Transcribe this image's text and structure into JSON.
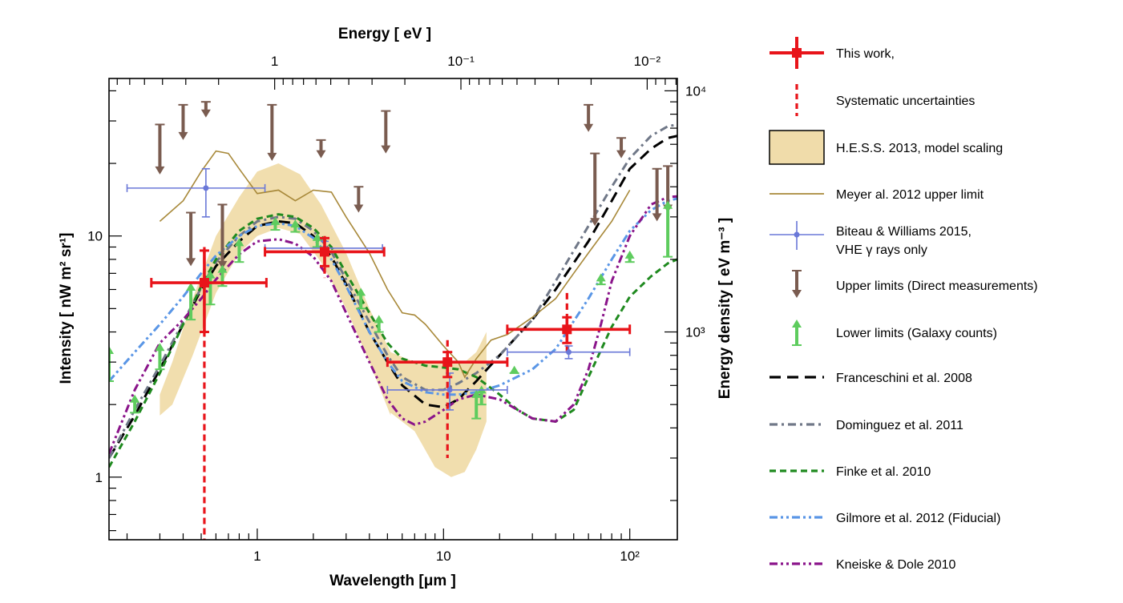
{
  "chart_data": {
    "type": "line",
    "xlabel": "Wavelength  [μm ]",
    "ylabel": "Intensity  [ nW m² sr¹]",
    "top_xlabel": "Energy [ eV ]",
    "right_ylabel": "Energy density  [ eV m⁻³ ]",
    "x_scale": "log",
    "y_scale": "log",
    "xlim": [
      0.16,
      180
    ],
    "ylim": [
      0.55,
      45
    ],
    "x_ticks": [
      {
        "value": 1,
        "label": "1"
      },
      {
        "value": 10,
        "label": "10"
      },
      {
        "value": 100,
        "label": "10²"
      }
    ],
    "y_ticks": [
      {
        "value": 1,
        "label": "1"
      },
      {
        "value": 10,
        "label": "10"
      }
    ],
    "top_ticks": [
      {
        "label": "1",
        "wavelength": 1.24
      },
      {
        "label": "10⁻¹",
        "wavelength": 12.4
      },
      {
        "label": "10⁻²",
        "wavelength": 124
      }
    ],
    "right_ticks": [
      {
        "label": "10³",
        "intensity": 4.0
      },
      {
        "label": "10⁴",
        "intensity": 40.0
      }
    ],
    "grid": false,
    "legend_position": "right",
    "series": [
      {
        "name": "This work,",
        "kind": "points_xy_err",
        "color": "#e8141a",
        "points": [
          {
            "x": 0.52,
            "y": 6.4,
            "xlo": 0.27,
            "xhi": 1.12,
            "ylo": 4.0,
            "yhi": 8.7
          },
          {
            "x": 2.3,
            "y": 8.6,
            "xlo": 1.1,
            "xhi": 4.8,
            "ylo": 7.5,
            "yhi": 9.8
          },
          {
            "x": 10.5,
            "y": 3.0,
            "xlo": 5.0,
            "xhi": 22,
            "ylo": 2.6,
            "yhi": 3.3
          },
          {
            "x": 46,
            "y": 4.1,
            "xlo": 22,
            "xhi": 100,
            "ylo": 3.6,
            "yhi": 4.6
          }
        ]
      },
      {
        "name": "Systematic uncertainties",
        "kind": "vertical_dashed",
        "color": "#e8141a",
        "points": [
          {
            "x": 0.52,
            "ylo": 0.55,
            "yhi": 9.0
          },
          {
            "x": 2.3,
            "ylo": 6.7,
            "yhi": 10.0
          },
          {
            "x": 10.5,
            "ylo": 1.2,
            "yhi": 3.7
          },
          {
            "x": 46,
            "ylo": 3.3,
            "yhi": 5.8
          }
        ]
      },
      {
        "name": "H.E.S.S. 2013, model scaling",
        "kind": "band",
        "color": "#f0dcaa",
        "x": [
          0.3,
          0.35,
          0.45,
          0.6,
          0.8,
          1.0,
          1.3,
          1.7,
          2.2,
          3.0,
          4.0,
          5.2,
          5.2,
          7.0,
          9.0,
          11.0,
          13.0,
          15.0,
          17.0,
          17.0
        ],
        "upper": [
          2.2,
          3.0,
          5.5,
          10.0,
          14.5,
          18.5,
          20.0,
          18.0,
          13.5,
          8.5,
          5.0,
          3.3,
          3.3,
          3.0,
          3.0,
          3.0,
          3.0,
          3.3,
          4.0,
          4.0
        ],
        "lower": [
          1.8,
          2.0,
          3.2,
          5.8,
          8.5,
          10.0,
          10.8,
          10.2,
          7.8,
          5.0,
          3.0,
          1.8,
          1.85,
          1.55,
          1.1,
          1.0,
          1.05,
          1.3,
          1.7,
          1.7
        ]
      },
      {
        "name": "Meyer al. 2012 upper limit",
        "kind": "line",
        "color": "#a8893a",
        "x": [
          0.3,
          0.4,
          0.5,
          0.6,
          0.7,
          0.8,
          1.0,
          1.3,
          1.6,
          2.0,
          2.5,
          3.0,
          4.0,
          5.0,
          6.0,
          7.0,
          8.0,
          10.0,
          12.0,
          13.0,
          15.0,
          18.0,
          22.0,
          30.0,
          40.0,
          50.0,
          60.0,
          80.0,
          100.0
        ],
        "y": [
          11.5,
          14.0,
          18.5,
          22.5,
          22.0,
          19.0,
          15.0,
          15.5,
          14.0,
          15.5,
          15.2,
          12.0,
          8.5,
          6.0,
          4.8,
          4.7,
          4.3,
          3.5,
          3.0,
          2.6,
          3.1,
          3.7,
          3.9,
          4.6,
          5.5,
          7.0,
          8.5,
          11.5,
          15.5
        ]
      },
      {
        "name": "Biteau & Williams 2015,",
        "name_line2": "VHE γ rays only",
        "kind": "points_xy_err",
        "color": "#6a78d8",
        "points": [
          {
            "x": 0.53,
            "y": 15.8,
            "xlo": 0.2,
            "xhi": 1.1,
            "ylo": 12.0,
            "yhi": 19.0
          },
          {
            "x": 2.3,
            "y": 8.9,
            "xlo": 1.1,
            "xhi": 4.7,
            "ylo": 8.3,
            "yhi": 9.5
          },
          {
            "x": 10.8,
            "y": 2.3,
            "xlo": 5.0,
            "xhi": 22.0,
            "ylo": 1.9,
            "yhi": 2.7
          },
          {
            "x": 47.0,
            "y": 3.3,
            "xlo": 22.0,
            "xhi": 100.0,
            "ylo": 3.1,
            "yhi": 3.5
          }
        ]
      },
      {
        "name": "Upper limits (Direct measurements)",
        "kind": "upper_limits",
        "color": "#7a5c50",
        "points": [
          {
            "x": 0.3,
            "ytop": 29,
            "y": 18
          },
          {
            "x": 0.4,
            "ytop": 35,
            "y": 25
          },
          {
            "x": 0.44,
            "ytop": 12.5,
            "y": 7.5
          },
          {
            "x": 0.53,
            "ytop": 36,
            "y": 31
          },
          {
            "x": 0.65,
            "ytop": 13.5,
            "y": 7.3
          },
          {
            "x": 1.2,
            "ytop": 35,
            "y": 20.5
          },
          {
            "x": 2.2,
            "ytop": 25,
            "y": 21
          },
          {
            "x": 3.5,
            "ytop": 16,
            "y": 12.5
          },
          {
            "x": 4.9,
            "ytop": 33,
            "y": 22
          },
          {
            "x": 60,
            "ytop": 35,
            "y": 27
          },
          {
            "x": 65,
            "ytop": 22,
            "y": 11.0
          },
          {
            "x": 90,
            "ytop": 25.5,
            "y": 21
          },
          {
            "x": 140,
            "ytop": 19,
            "y": 11.5
          },
          {
            "x": 160,
            "ytop": 19.5,
            "y": 12.5
          }
        ]
      },
      {
        "name": "Lower limits (Galaxy counts)",
        "kind": "lower_limits",
        "color": "#5ecc5e",
        "points": [
          {
            "x": 0.16,
            "ybot": 2.5,
            "y": 3.5
          },
          {
            "x": 0.22,
            "ybot": 1.85,
            "y": 2.2
          },
          {
            "x": 0.3,
            "ybot": 2.8,
            "y": 3.6
          },
          {
            "x": 0.44,
            "ybot": 4.5,
            "y": 6.4
          },
          {
            "x": 0.56,
            "ybot": 5.2,
            "y": 7.2
          },
          {
            "x": 0.65,
            "ybot": 6.2,
            "y": 7.6
          },
          {
            "x": 0.8,
            "ybot": 7.8,
            "y": 9.8
          },
          {
            "x": 1.25,
            "ybot": 10.6,
            "y": 12.0
          },
          {
            "x": 1.6,
            "ybot": 10.4,
            "y": 11.7
          },
          {
            "x": 2.1,
            "ybot": 9.0,
            "y": 10.3
          },
          {
            "x": 3.6,
            "ybot": 5.0,
            "y": 6.1
          },
          {
            "x": 4.5,
            "ybot": 4.0,
            "y": 4.7
          },
          {
            "x": 15.0,
            "ybot": 1.75,
            "y": 2.3
          },
          {
            "x": 16.0,
            "ybot": 2.0,
            "y": 2.4
          },
          {
            "x": 24.0,
            "ybot": 2.7,
            "y": 2.9
          },
          {
            "x": 70.0,
            "ybot": 6.3,
            "y": 7.0
          },
          {
            "x": 100.0,
            "ybot": 7.8,
            "y": 8.7
          },
          {
            "x": 160.0,
            "ybot": 8.2,
            "y": 14.0
          }
        ]
      },
      {
        "name": "Franceschini et al. 2008",
        "kind": "line",
        "dash": "14,8",
        "color": "#000000",
        "x": [
          0.16,
          0.22,
          0.3,
          0.4,
          0.5,
          0.6,
          0.8,
          1.0,
          1.3,
          1.6,
          2.0,
          2.5,
          3.0,
          4.0,
          5.0,
          6.0,
          8.0,
          10.0,
          12.0,
          15.0,
          20.0,
          30.0,
          40.0,
          60.0,
          80.0,
          100.0,
          130.0,
          160.0,
          180.0
        ],
        "y": [
          1.2,
          1.8,
          2.8,
          4.3,
          6.0,
          7.5,
          9.5,
          11.0,
          11.5,
          11.3,
          10.0,
          8.2,
          6.3,
          4.0,
          3.0,
          2.4,
          2.0,
          1.95,
          2.1,
          2.5,
          3.2,
          4.5,
          6.0,
          9.5,
          14.0,
          19.0,
          23.0,
          25.5,
          26.0
        ]
      },
      {
        "name": "Dominguez et al. 2011",
        "kind": "line",
        "dash": "10,5,3,5",
        "color": "#707888",
        "x": [
          0.16,
          0.22,
          0.3,
          0.4,
          0.5,
          0.6,
          0.8,
          1.0,
          1.3,
          1.6,
          2.0,
          2.5,
          3.0,
          4.0,
          5.0,
          6.0,
          8.0,
          10.0,
          12.0,
          15.0,
          20.0,
          30.0,
          40.0,
          60.0,
          80.0,
          100.0,
          130.0,
          160.0,
          180.0
        ],
        "y": [
          1.2,
          1.9,
          2.9,
          4.4,
          6.1,
          7.8,
          10.0,
          11.5,
          12.0,
          11.8,
          10.5,
          8.6,
          6.6,
          4.4,
          3.2,
          2.6,
          2.3,
          2.3,
          2.45,
          2.7,
          3.2,
          4.5,
          6.5,
          11.0,
          16.0,
          21.0,
          26.0,
          28.5,
          29.0
        ]
      },
      {
        "name": "Finke et al. 2010",
        "kind": "line",
        "dash": "8,5",
        "color": "#1f8a1f",
        "x": [
          0.16,
          0.22,
          0.3,
          0.4,
          0.5,
          0.6,
          0.8,
          1.0,
          1.3,
          1.6,
          2.0,
          2.5,
          3.0,
          4.0,
          5.0,
          6.0,
          8.0,
          10.0,
          12.0,
          15.0,
          20.0,
          25.0,
          30.0,
          40.0,
          50.0,
          60.0,
          80.0,
          100.0,
          130.0,
          160.0,
          180.0
        ],
        "y": [
          1.1,
          1.7,
          2.7,
          4.3,
          6.2,
          8.0,
          10.5,
          11.8,
          12.3,
          12.0,
          10.8,
          9.0,
          7.0,
          4.8,
          3.6,
          3.1,
          2.9,
          2.85,
          2.8,
          2.6,
          2.2,
          1.9,
          1.75,
          1.7,
          1.9,
          2.6,
          4.2,
          5.6,
          6.8,
          7.7,
          8.0
        ]
      },
      {
        "name": "Gilmore et al. 2012 (Fiducial)",
        "kind": "line",
        "dash": "10,4,3,4,3,4",
        "color": "#5a96e6",
        "x": [
          0.16,
          0.22,
          0.3,
          0.4,
          0.5,
          0.6,
          0.8,
          1.0,
          1.3,
          1.6,
          2.0,
          2.5,
          3.0,
          4.0,
          5.0,
          6.0,
          8.0,
          10.0,
          12.0,
          15.0,
          20.0,
          30.0,
          40.0,
          60.0,
          80.0,
          100.0,
          130.0,
          160.0,
          180.0
        ],
        "y": [
          2.5,
          3.3,
          4.3,
          5.6,
          7.0,
          8.3,
          10.0,
          11.0,
          11.3,
          11.0,
          9.8,
          8.0,
          6.2,
          4.0,
          3.0,
          2.5,
          2.25,
          2.2,
          2.2,
          2.25,
          2.4,
          2.8,
          3.4,
          5.5,
          8.0,
          10.5,
          12.8,
          14.0,
          14.3
        ]
      },
      {
        "name": "Kneiske & Dole 2010",
        "kind": "line",
        "dash": "10,4,3,4,3,4",
        "color": "#8a148a",
        "x": [
          0.16,
          0.22,
          0.3,
          0.4,
          0.5,
          0.6,
          0.8,
          1.0,
          1.3,
          1.6,
          2.0,
          2.5,
          3.0,
          4.0,
          5.0,
          6.0,
          7.0,
          8.0,
          10.0,
          12.0,
          15.0,
          20.0,
          25.0,
          30.0,
          40.0,
          50.0,
          60.0,
          70.0,
          80.0,
          100.0,
          130.0,
          160.0,
          180.0
        ],
        "y": [
          1.25,
          2.3,
          3.6,
          4.5,
          5.5,
          6.6,
          8.4,
          9.5,
          9.7,
          9.3,
          8.2,
          6.5,
          4.8,
          3.0,
          2.1,
          1.75,
          1.65,
          1.7,
          1.9,
          2.1,
          2.2,
          2.1,
          1.9,
          1.75,
          1.7,
          2.0,
          2.8,
          4.3,
          6.5,
          10.0,
          13.5,
          14.5,
          14.6
        ]
      }
    ]
  }
}
